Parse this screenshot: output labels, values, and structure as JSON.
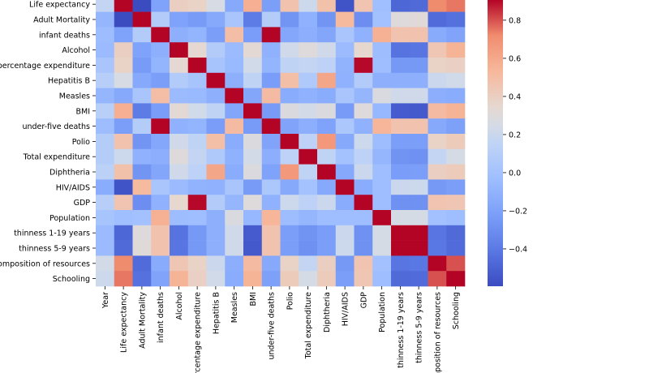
{
  "chart_data": {
    "type": "heatmap",
    "title": "",
    "xlabel": "",
    "ylabel": "",
    "colormap": "coolwarm",
    "colorbar": {
      "min": -0.6,
      "max": 0.9,
      "ticks": [
        0.8,
        0.6,
        0.4,
        0.2,
        0.0,
        -0.2,
        -0.4
      ],
      "tick_labels": [
        "0.8",
        "0.6",
        "0.4",
        "0.2",
        "0.0",
        "−0.2",
        "−0.4"
      ]
    },
    "x_labels": [
      "Year",
      "Life expectancy ",
      "Adult Mortality",
      "infant deaths",
      "Alcohol",
      "percentage expenditure",
      "Hepatitis B",
      "Measles ",
      " BMI ",
      "under-five deaths ",
      "Polio",
      "Total expenditure",
      "Diphtheria ",
      " HIV/AIDS",
      "GDP",
      "Population",
      " thinness  1-19 years",
      " thinness 5-9 years",
      "Income composition of resources",
      "Schooling"
    ],
    "y_labels": [
      "Year",
      "Life expectancy ",
      "Adult Mortality",
      "infant deaths",
      "Alcohol",
      "percentage expenditure",
      "Hepatitis B",
      "Measles ",
      " BMI ",
      "under-five deaths ",
      "Polio",
      "Total expenditure",
      "Diphtheria ",
      " HIV/AIDS",
      "GDP",
      "Population",
      " thinness  1-19 years",
      " thinness 5-9 years",
      "Income composition of resources",
      "Schooling"
    ],
    "y_labels_display": [
      "Year",
      "Life expectancy",
      "Adult Mortality",
      "infant deaths",
      "Alcohol",
      "percentage expenditure",
      "Hepatitis B",
      "Measles",
      "BMI",
      "under-five deaths",
      "Polio",
      "Total expenditure",
      "Diphtheria",
      "HIV/AIDS",
      "GDP",
      "Population",
      "thinness  1-19 years",
      "thinness 5-9 years",
      "e composition of resources",
      "Schooling"
    ],
    "x_labels_display": [
      "Year",
      "Life expectancy",
      "Adult Mortality",
      "infant deaths",
      "Alcohol",
      "percentage expenditure",
      "Hepatitis B",
      "Measles",
      "BMI",
      "under-five deaths",
      "Polio",
      "Total expenditure",
      "Diphtheria",
      "HIV/AIDS",
      "GDP",
      "Population",
      "thinness  1-19 years",
      "thinness 5-9 years",
      "omposition of resources",
      "Schooling"
    ],
    "matrix": [
      [
        1.0,
        0.17,
        -0.08,
        -0.04,
        -0.05,
        0.03,
        0.1,
        -0.08,
        0.11,
        -0.04,
        0.09,
        0.09,
        0.13,
        -0.14,
        0.1,
        0.02,
        -0.05,
        -0.05,
        0.24,
        0.21
      ],
      [
        0.17,
        1.0,
        -0.7,
        -0.2,
        0.4,
        0.38,
        0.26,
        -0.16,
        0.57,
        -0.22,
        0.47,
        0.21,
        0.48,
        -0.56,
        0.46,
        -0.02,
        -0.48,
        -0.47,
        0.72,
        0.75
      ],
      [
        -0.08,
        -0.7,
        1.0,
        0.08,
        -0.2,
        -0.24,
        -0.16,
        0.03,
        -0.39,
        0.09,
        -0.27,
        -0.11,
        -0.27,
        0.52,
        -0.3,
        -0.01,
        0.3,
        0.31,
        -0.46,
        -0.44
      ],
      [
        -0.04,
        -0.2,
        0.08,
        1.0,
        -0.12,
        -0.09,
        -0.22,
        0.5,
        -0.23,
        1.0,
        -0.17,
        -0.13,
        -0.18,
        0.03,
        -0.11,
        0.56,
        0.47,
        0.47,
        -0.15,
        -0.19
      ],
      [
        -0.05,
        0.4,
        -0.2,
        -0.12,
        1.0,
        0.34,
        0.08,
        -0.05,
        0.33,
        -0.11,
        0.22,
        0.3,
        0.22,
        -0.05,
        0.35,
        -0.04,
        -0.43,
        -0.42,
        0.45,
        0.55
      ],
      [
        0.03,
        0.38,
        -0.24,
        -0.09,
        0.34,
        1.0,
        0.02,
        -0.06,
        0.23,
        -0.09,
        0.15,
        0.17,
        0.14,
        -0.1,
        0.9,
        -0.03,
        -0.25,
        -0.25,
        0.38,
        0.39
      ],
      [
        0.1,
        0.26,
        -0.16,
        -0.22,
        0.08,
        0.02,
        1.0,
        -0.12,
        0.15,
        -0.23,
        0.49,
        0.06,
        0.61,
        -0.11,
        0.08,
        -0.12,
        -0.12,
        -0.12,
        0.2,
        0.23
      ],
      [
        -0.08,
        -0.16,
        0.03,
        0.5,
        -0.05,
        -0.06,
        -0.12,
        1.0,
        -0.18,
        0.51,
        -0.14,
        -0.11,
        -0.14,
        0.03,
        -0.08,
        0.27,
        0.22,
        0.22,
        -0.13,
        -0.14
      ],
      [
        0.11,
        0.57,
        -0.39,
        -0.23,
        0.33,
        0.23,
        0.15,
        -0.18,
        1.0,
        -0.24,
        0.28,
        0.24,
        0.28,
        -0.24,
        0.3,
        -0.07,
        -0.53,
        -0.54,
        0.51,
        0.55
      ],
      [
        -0.04,
        -0.22,
        0.09,
        1.0,
        -0.11,
        -0.09,
        -0.23,
        0.51,
        -0.24,
        1.0,
        -0.19,
        -0.13,
        -0.2,
        0.04,
        -0.11,
        0.54,
        0.47,
        0.47,
        -0.16,
        -0.21
      ],
      [
        0.09,
        0.47,
        -0.27,
        -0.17,
        0.22,
        0.15,
        0.49,
        -0.14,
        0.28,
        -0.19,
        1.0,
        0.14,
        0.67,
        -0.16,
        0.21,
        -0.04,
        -0.22,
        -0.22,
        0.38,
        0.42
      ],
      [
        0.09,
        0.21,
        -0.11,
        -0.13,
        0.3,
        0.17,
        0.06,
        -0.11,
        0.24,
        -0.13,
        0.14,
        1.0,
        0.15,
        -0.0,
        0.14,
        -0.08,
        -0.28,
        -0.29,
        0.17,
        0.25
      ],
      [
        0.13,
        0.48,
        -0.27,
        -0.18,
        0.22,
        0.14,
        0.61,
        -0.14,
        0.28,
        -0.2,
        0.67,
        0.15,
        1.0,
        -0.16,
        0.2,
        -0.03,
        -0.23,
        -0.22,
        0.4,
        0.42
      ],
      [
        -0.14,
        -0.56,
        0.52,
        0.03,
        -0.05,
        -0.1,
        -0.11,
        0.03,
        -0.24,
        0.04,
        -0.16,
        -0.0,
        -0.16,
        1.0,
        -0.14,
        -0.03,
        0.2,
        0.21,
        -0.25,
        -0.22
      ],
      [
        0.1,
        0.46,
        -0.3,
        -0.11,
        0.35,
        0.9,
        0.08,
        -0.08,
        0.3,
        -0.11,
        0.21,
        0.14,
        0.2,
        -0.14,
        1.0,
        -0.03,
        -0.29,
        -0.29,
        0.46,
        0.45
      ],
      [
        0.02,
        -0.02,
        -0.01,
        0.56,
        -0.04,
        -0.03,
        -0.12,
        0.27,
        -0.07,
        0.54,
        -0.04,
        -0.08,
        -0.03,
        -0.03,
        -0.03,
        1.0,
        0.25,
        0.25,
        -0.01,
        -0.03
      ],
      [
        -0.05,
        -0.48,
        0.3,
        0.47,
        -0.43,
        -0.25,
        -0.12,
        0.22,
        -0.53,
        0.47,
        -0.22,
        -0.28,
        -0.23,
        0.2,
        -0.29,
        0.25,
        1.0,
        0.94,
        -0.42,
        -0.47
      ],
      [
        -0.05,
        -0.47,
        0.31,
        0.47,
        -0.42,
        -0.25,
        -0.12,
        0.22,
        -0.54,
        0.47,
        -0.22,
        -0.29,
        -0.22,
        0.21,
        -0.29,
        0.25,
        0.94,
        1.0,
        -0.41,
        -0.46
      ],
      [
        0.24,
        0.72,
        -0.46,
        -0.15,
        0.45,
        0.38,
        0.2,
        -0.13,
        0.51,
        -0.16,
        0.38,
        0.17,
        0.4,
        -0.25,
        0.46,
        -0.01,
        -0.42,
        -0.41,
        1.0,
        0.8
      ],
      [
        0.21,
        0.75,
        -0.44,
        -0.19,
        0.55,
        0.39,
        0.23,
        -0.14,
        0.55,
        -0.21,
        0.42,
        0.25,
        0.42,
        -0.22,
        0.45,
        -0.03,
        -0.47,
        -0.46,
        0.8,
        1.0
      ]
    ]
  }
}
